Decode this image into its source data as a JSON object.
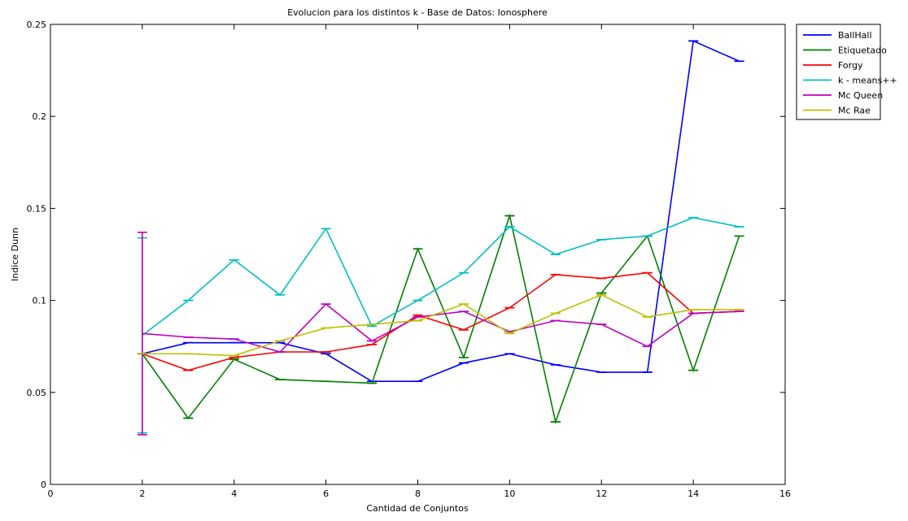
{
  "chart_data": {
    "type": "line",
    "title": "Evolucion para los distintos k  - Base de Datos: Ionosphere",
    "xlabel": "Cantidad de Conjuntos",
    "ylabel": "Indice Dunn",
    "xlim": [
      0,
      16
    ],
    "ylim": [
      0,
      0.25
    ],
    "xticks": [
      0,
      2,
      4,
      6,
      8,
      10,
      12,
      14,
      16
    ],
    "yticks": [
      0,
      0.05,
      0.1,
      0.15,
      0.2,
      0.25
    ],
    "xtick_labels": [
      "0",
      "2",
      "4",
      "6",
      "8",
      "10",
      "12",
      "14",
      "16"
    ],
    "ytick_labels": [
      "0",
      "0.05",
      "0.1",
      "0.15",
      "0.2",
      "0.25"
    ],
    "grid": false,
    "legend_position": "outside-top-right",
    "x": [
      2,
      3,
      4,
      5,
      6,
      7,
      8,
      9,
      10,
      11,
      12,
      13,
      14,
      15
    ],
    "series": [
      {
        "name": "BallHall",
        "color": "#0000ff",
        "values": [
          0.071,
          0.077,
          0.077,
          0.077,
          0.071,
          0.056,
          0.056,
          0.066,
          0.071,
          0.065,
          0.061,
          0.061,
          0.241,
          0.23
        ],
        "err_low": [
          0,
          0,
          0,
          0,
          0,
          0,
          0,
          0,
          0,
          0,
          0,
          0,
          0,
          0
        ],
        "err_high": [
          0,
          0,
          0,
          0,
          0,
          0,
          0,
          0,
          0,
          0,
          0,
          0,
          0,
          0
        ]
      },
      {
        "name": "Etiquetado",
        "color": "#008000",
        "values": [
          0.071,
          0.036,
          0.068,
          0.057,
          0.056,
          0.055,
          0.128,
          0.069,
          0.146,
          0.034,
          0.104,
          0.135,
          0.062,
          0.135
        ],
        "err_low": [
          0,
          0,
          0,
          0,
          0,
          0,
          0,
          0,
          0,
          0,
          0,
          0,
          0,
          0
        ],
        "err_high": [
          0,
          0,
          0,
          0,
          0,
          0,
          0,
          0,
          0,
          0,
          0,
          0,
          0,
          0
        ]
      },
      {
        "name": "Forgy",
        "color": "#ff0000",
        "values": [
          0.071,
          0.062,
          0.069,
          0.072,
          0.072,
          0.076,
          0.092,
          0.084,
          0.096,
          0.114,
          0.112,
          0.115,
          0.093,
          0.094
        ],
        "err_low": [
          0,
          0,
          0,
          0,
          0,
          0,
          0,
          0,
          0,
          0,
          0,
          0,
          0,
          0
        ],
        "err_high": [
          0,
          0,
          0,
          0,
          0,
          0,
          0,
          0,
          0,
          0,
          0,
          0,
          0,
          0
        ]
      },
      {
        "name": "k - means++",
        "color": "#00bfbf",
        "values": [
          0.081,
          0.1,
          0.122,
          0.103,
          0.139,
          0.086,
          0.1,
          0.115,
          0.14,
          0.125,
          0.133,
          0.135,
          0.145,
          0.14
        ],
        "err_low": [
          0.053,
          0,
          0,
          0,
          0,
          0,
          0,
          0,
          0,
          0,
          0,
          0,
          0,
          0
        ],
        "err_high": [
          0.053,
          0,
          0,
          0,
          0,
          0,
          0,
          0,
          0,
          0,
          0,
          0,
          0,
          0
        ]
      },
      {
        "name": "Mc Queen",
        "color": "#bf00bf",
        "values": [
          0.082,
          0.08,
          0.079,
          0.072,
          0.098,
          0.078,
          0.091,
          0.094,
          0.083,
          0.089,
          0.087,
          0.075,
          0.093,
          0.094
        ],
        "err_low": [
          0.055,
          0,
          0,
          0,
          0,
          0,
          0,
          0,
          0,
          0,
          0,
          0,
          0,
          0
        ],
        "err_high": [
          0.055,
          0,
          0,
          0,
          0,
          0,
          0,
          0,
          0,
          0,
          0,
          0,
          0,
          0
        ]
      },
      {
        "name": "Mc Rae",
        "color": "#bfbf00",
        "values": [
          0.071,
          0.071,
          0.07,
          0.078,
          0.085,
          0.087,
          0.089,
          0.098,
          0.082,
          0.093,
          0.103,
          0.091,
          0.095,
          0.095
        ],
        "err_low": [
          0,
          0,
          0,
          0,
          0,
          0,
          0,
          0,
          0,
          0,
          0,
          0,
          0,
          0
        ],
        "err_high": [
          0,
          0,
          0,
          0,
          0,
          0,
          0,
          0,
          0,
          0,
          0,
          0,
          0,
          0
        ]
      }
    ]
  }
}
